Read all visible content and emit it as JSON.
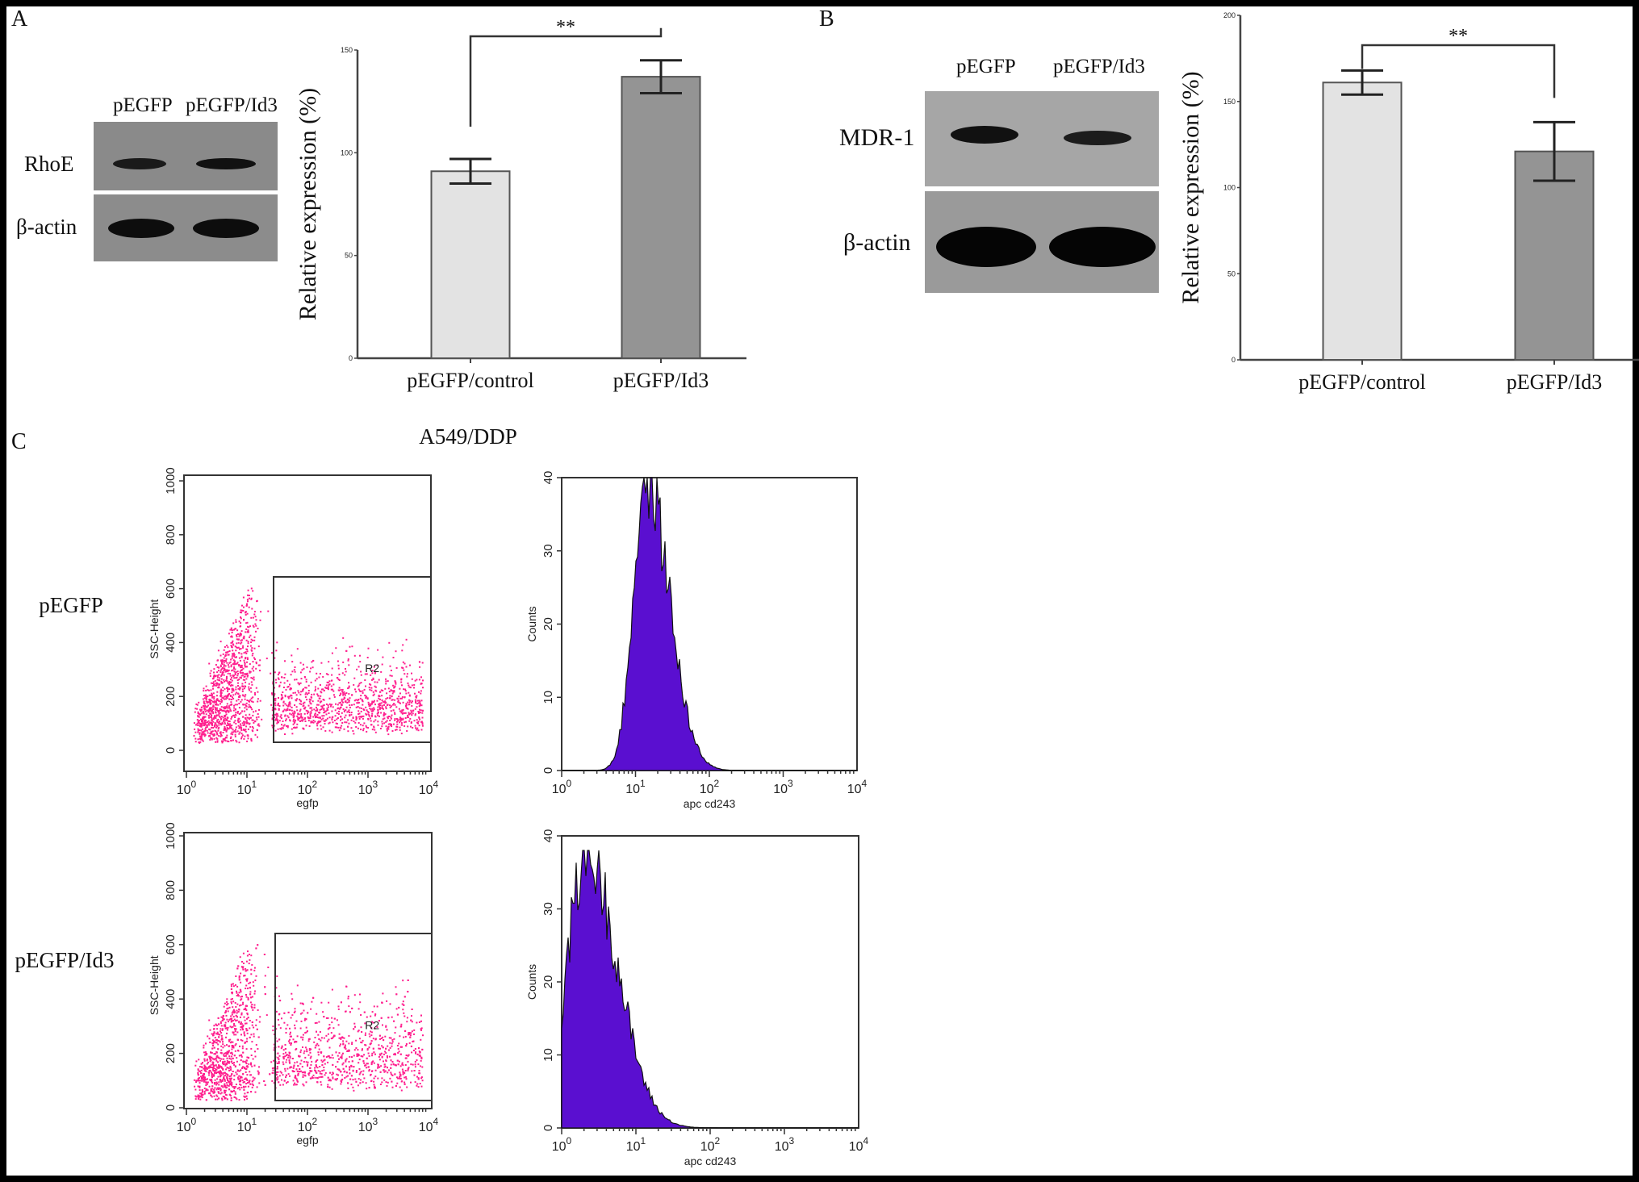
{
  "panels": {
    "a": "A",
    "b": "B",
    "c": "C"
  },
  "blot_a": {
    "lanes": [
      "pEGFP",
      "pEGFP/Id3"
    ],
    "rows": [
      "RhoE",
      "β-actin"
    ]
  },
  "blot_b": {
    "lanes": [
      "pEGFP",
      "pEGFP/Id3"
    ],
    "rows": [
      "MDR-1",
      "β-actin"
    ]
  },
  "flow": {
    "title": "A549/DDP",
    "rows": [
      "pEGFP",
      "pEGFP/Id3"
    ],
    "gate_label": "R2",
    "scatter_xlabel": "egfp",
    "scatter_ylabel": "SSC-Height",
    "scatter_yticks": [
      "0",
      "200",
      "400",
      "600",
      "800",
      "1000"
    ],
    "hist_xlabel": "apc cd243",
    "hist_ylabel": "Counts",
    "hist_yticks": [
      "0",
      "10",
      "20",
      "30",
      "40"
    ],
    "log_base": "10",
    "log_exponents": [
      "0",
      "1",
      "2",
      "3",
      "4"
    ],
    "colors": {
      "dots": "#ff1f8e",
      "hist": "#5a0fd0"
    }
  },
  "chart_data": [
    {
      "type": "bar",
      "title": "RhoE",
      "categories": [
        "pEGFP/control",
        "pEGFP/Id3"
      ],
      "values": [
        91,
        137
      ],
      "errors": [
        6,
        8
      ],
      "ylabel": "Relative expression (%)",
      "ylim": [
        0,
        150
      ],
      "yticks": [
        "0",
        "50",
        "100",
        "150"
      ],
      "significance": "**",
      "colors": [
        "#e3e3e3",
        "#949494"
      ]
    },
    {
      "type": "bar",
      "title": "MDR-1",
      "categories": [
        "pEGFP/control",
        "pEGFP/Id3"
      ],
      "values": [
        161,
        121
      ],
      "errors": [
        7,
        17
      ],
      "ylabel": "Relative expression (%)",
      "ylim": [
        0,
        200
      ],
      "yticks": [
        "0",
        "50",
        "100",
        "150",
        "200"
      ],
      "significance": "**",
      "colors": [
        "#e3e3e3",
        "#949494"
      ]
    },
    {
      "type": "histogram",
      "name": "pEGFP apc cd243",
      "xscale": "log",
      "xlim": [
        1,
        10000
      ],
      "ylim": [
        0,
        40
      ],
      "peak_x": 14,
      "peak_count": 40,
      "log_sd": 0.22
    },
    {
      "type": "histogram",
      "name": "pEGFP/Id3 apc cd243",
      "xscale": "log",
      "xlim": [
        1,
        10000
      ],
      "ylim": [
        0,
        40
      ],
      "peak_x": 2.1,
      "peak_count": 38,
      "log_sd": 0.3
    }
  ]
}
